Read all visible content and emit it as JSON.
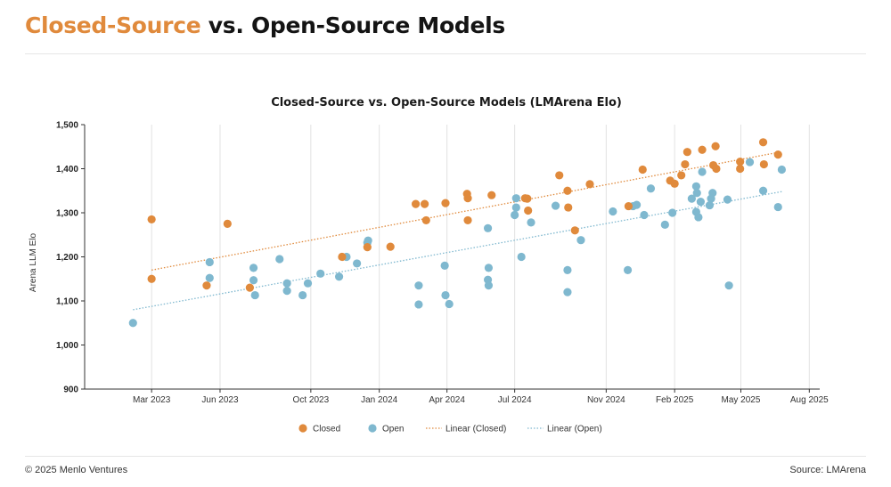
{
  "header": {
    "title_accent": "Closed-Source",
    "title_rest": " vs. Open-Source Models"
  },
  "footer": {
    "copyright": "© 2025 Menlo Ventures",
    "source": "Source: LMArena"
  },
  "colors": {
    "closed": "#e08a3c",
    "open": "#7fb8cf",
    "grid": "#e2e2e2",
    "axis": "#333333"
  },
  "chart_data": {
    "type": "scatter",
    "title": "Closed-Source vs. Open-Source Models (LMArena Elo)",
    "ylabel": "Arena LLM Elo",
    "xlabel": "",
    "ylim": [
      900,
      1500
    ],
    "yticks": [
      900,
      1000,
      1100,
      1200,
      1300,
      1400,
      1500
    ],
    "ytick_labels": [
      "900",
      "1,000",
      "1,100",
      "1,200",
      "1,300",
      "1,400",
      "1,500"
    ],
    "xlim": [
      "2022-12-01",
      "2025-08-15"
    ],
    "xticks": [
      "2023-03-01",
      "2023-06-01",
      "2023-10-01",
      "2024-01-01",
      "2024-04-01",
      "2024-07-01",
      "2024-11-01",
      "2025-02-01",
      "2025-05-01",
      "2025-08-01"
    ],
    "xtick_labels": [
      "Mar 2023",
      "Jun 2023",
      "Oct 2023",
      "Jan 2024",
      "Apr 2024",
      "Jul 2024",
      "Nov 2024",
      "Feb 2025",
      "May 2025",
      "Aug 2025"
    ],
    "grid": "vertical",
    "legend_position": "bottom-center",
    "legend": [
      "Closed",
      "Open",
      "Linear (Closed)",
      "Linear (Open)"
    ],
    "series": [
      {
        "name": "Closed",
        "marker": "circle",
        "points": [
          [
            "2023-03-01",
            1285
          ],
          [
            "2023-03-01",
            1150
          ],
          [
            "2023-05-14",
            1135
          ],
          [
            "2023-06-11",
            1275
          ],
          [
            "2023-07-11",
            1130
          ],
          [
            "2023-11-12",
            1200
          ],
          [
            "2023-12-16",
            1222
          ],
          [
            "2024-01-16",
            1223
          ],
          [
            "2024-02-19",
            1320
          ],
          [
            "2024-03-02",
            1320
          ],
          [
            "2024-03-04",
            1283
          ],
          [
            "2024-03-30",
            1322
          ],
          [
            "2024-04-28",
            1343
          ],
          [
            "2024-04-29",
            1333
          ],
          [
            "2024-04-29",
            1283
          ],
          [
            "2024-05-31",
            1340
          ],
          [
            "2024-07-15",
            1333
          ],
          [
            "2024-07-18",
            1332
          ],
          [
            "2024-07-19",
            1305
          ],
          [
            "2024-08-30",
            1385
          ],
          [
            "2024-09-10",
            1350
          ],
          [
            "2024-09-11",
            1312
          ],
          [
            "2024-09-20",
            1260
          ],
          [
            "2024-10-10",
            1365
          ],
          [
            "2024-12-01",
            1315
          ],
          [
            "2024-12-20",
            1398
          ],
          [
            "2025-01-26",
            1373
          ],
          [
            "2025-02-01",
            1366
          ],
          [
            "2025-02-10",
            1385
          ],
          [
            "2025-02-15",
            1410
          ],
          [
            "2025-02-18",
            1438
          ],
          [
            "2025-03-10",
            1443
          ],
          [
            "2025-03-25",
            1408
          ],
          [
            "2025-03-28",
            1451
          ],
          [
            "2025-03-29",
            1400
          ],
          [
            "2025-04-30",
            1416
          ],
          [
            "2025-04-30",
            1400
          ],
          [
            "2025-05-31",
            1460
          ],
          [
            "2025-06-01",
            1410
          ],
          [
            "2025-06-20",
            1432
          ]
        ]
      },
      {
        "name": "Open",
        "marker": "circle",
        "points": [
          [
            "2023-02-04",
            1050
          ],
          [
            "2023-05-18",
            1188
          ],
          [
            "2023-05-18",
            1152
          ],
          [
            "2023-07-16",
            1175
          ],
          [
            "2023-07-16",
            1147
          ],
          [
            "2023-07-18",
            1113
          ],
          [
            "2023-08-20",
            1195
          ],
          [
            "2023-08-30",
            1140
          ],
          [
            "2023-08-30",
            1123
          ],
          [
            "2023-09-20",
            1113
          ],
          [
            "2023-09-27",
            1140
          ],
          [
            "2023-10-14",
            1162
          ],
          [
            "2023-11-08",
            1155
          ],
          [
            "2023-11-18",
            1200
          ],
          [
            "2023-12-02",
            1185
          ],
          [
            "2023-12-16",
            1232
          ],
          [
            "2023-12-17",
            1237
          ],
          [
            "2024-02-23",
            1092
          ],
          [
            "2024-02-23",
            1135
          ],
          [
            "2024-03-29",
            1180
          ],
          [
            "2024-03-30",
            1113
          ],
          [
            "2024-04-04",
            1093
          ],
          [
            "2024-05-26",
            1265
          ],
          [
            "2024-05-27",
            1175
          ],
          [
            "2024-05-26",
            1148
          ],
          [
            "2024-05-27",
            1135
          ],
          [
            "2024-07-03",
            1333
          ],
          [
            "2024-07-03",
            1312
          ],
          [
            "2024-07-01",
            1295
          ],
          [
            "2024-07-10",
            1200
          ],
          [
            "2024-07-23",
            1278
          ],
          [
            "2024-08-25",
            1316
          ],
          [
            "2024-09-10",
            1170
          ],
          [
            "2024-09-10",
            1120
          ],
          [
            "2024-09-28",
            1238
          ],
          [
            "2024-11-10",
            1303
          ],
          [
            "2024-11-30",
            1170
          ],
          [
            "2024-12-07",
            1315
          ],
          [
            "2024-12-12",
            1318
          ],
          [
            "2024-12-22",
            1295
          ],
          [
            "2024-12-31",
            1355
          ],
          [
            "2025-01-19",
            1273
          ],
          [
            "2025-01-29",
            1300
          ],
          [
            "2025-02-24",
            1332
          ],
          [
            "2025-03-02",
            1360
          ],
          [
            "2025-03-03",
            1345
          ],
          [
            "2025-03-02",
            1302
          ],
          [
            "2025-03-05",
            1290
          ],
          [
            "2025-03-08",
            1325
          ],
          [
            "2025-03-10",
            1393
          ],
          [
            "2025-03-24",
            1345
          ],
          [
            "2025-03-22",
            1332
          ],
          [
            "2025-03-20",
            1317
          ],
          [
            "2025-04-13",
            1330
          ],
          [
            "2025-04-15",
            1135
          ],
          [
            "2025-05-13",
            1415
          ],
          [
            "2025-05-31",
            1350
          ],
          [
            "2025-06-20",
            1313
          ],
          [
            "2025-06-25",
            1398
          ]
        ]
      }
    ],
    "trendlines": [
      {
        "name": "Linear (Closed)",
        "style": "dotted",
        "from": [
          "2023-03-01",
          1170
        ],
        "to": [
          "2025-06-20",
          1437
        ]
      },
      {
        "name": "Linear (Open)",
        "style": "dotted",
        "from": [
          "2023-02-04",
          1080
        ],
        "to": [
          "2025-06-25",
          1348
        ]
      }
    ]
  }
}
